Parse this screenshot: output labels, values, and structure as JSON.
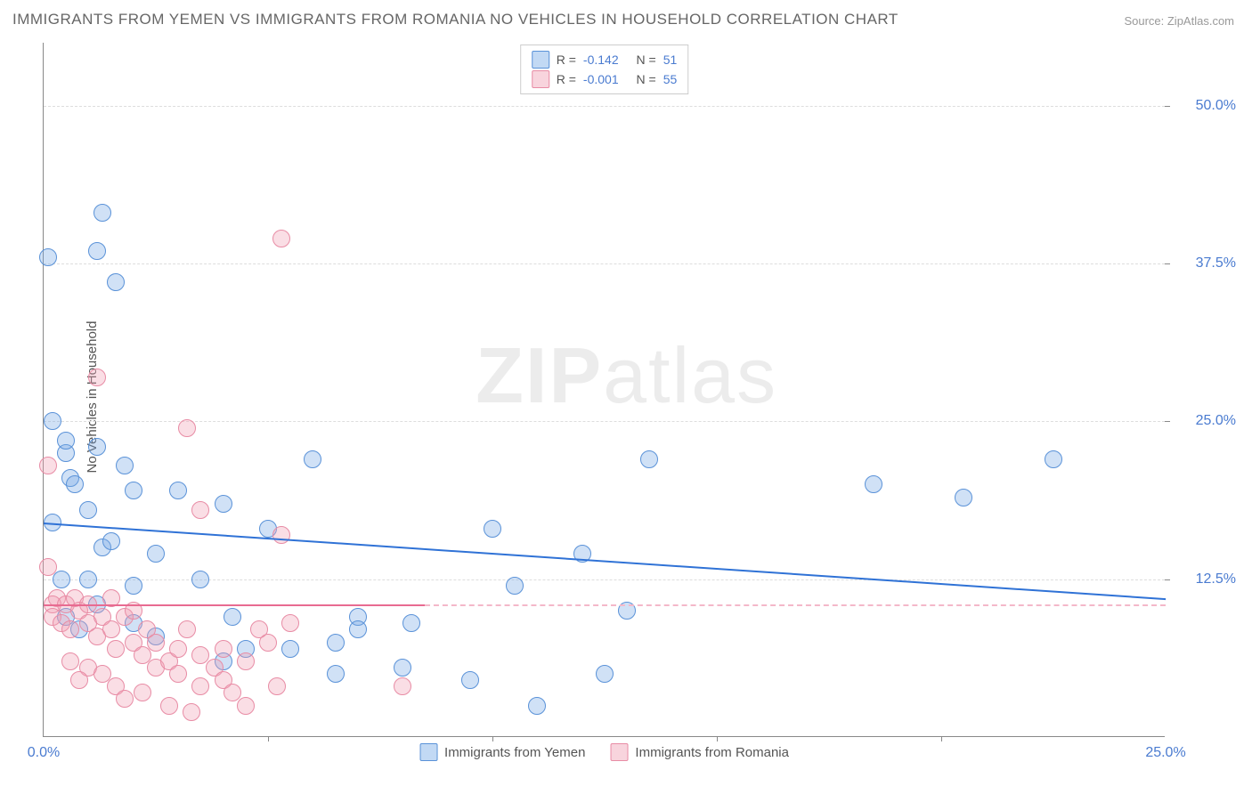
{
  "title": "IMMIGRANTS FROM YEMEN VS IMMIGRANTS FROM ROMANIA NO VEHICLES IN HOUSEHOLD CORRELATION CHART",
  "source": "Source: ZipAtlas.com",
  "ylabel": "No Vehicles in Household",
  "watermark_a": "ZIP",
  "watermark_b": "atlas",
  "chart": {
    "type": "scatter",
    "xlim": [
      0,
      25
    ],
    "ylim": [
      0,
      55
    ],
    "xtick_labels": [
      "0.0%",
      "25.0%"
    ],
    "xtick_positions": [
      0,
      25
    ],
    "xtick_minor": [
      5,
      10,
      15,
      20
    ],
    "ytick_labels": [
      "12.5%",
      "25.0%",
      "37.5%",
      "50.0%"
    ],
    "ytick_positions": [
      12.5,
      25.0,
      37.5,
      50.0
    ],
    "grid_color": "#dddddd",
    "axis_color": "#888888",
    "background": "#ffffff",
    "marker_size": 20,
    "series": [
      {
        "name": "Immigrants from Yemen",
        "fill": "rgba(120,170,230,0.35)",
        "stroke": "#5a92d8",
        "trend_color": "#2f72d6",
        "r": "-0.142",
        "n": "51",
        "trend": {
          "x1": 0,
          "y1": 17.0,
          "x2": 25,
          "y2": 11.0
        },
        "points": [
          [
            0.1,
            38.0
          ],
          [
            1.2,
            38.5
          ],
          [
            1.3,
            41.5
          ],
          [
            1.6,
            36.0
          ],
          [
            0.2,
            25.0
          ],
          [
            0.5,
            22.5
          ],
          [
            0.5,
            23.5
          ],
          [
            1.2,
            23.0
          ],
          [
            0.6,
            20.5
          ],
          [
            0.7,
            20.0
          ],
          [
            1.0,
            18.0
          ],
          [
            0.2,
            17.0
          ],
          [
            1.8,
            21.5
          ],
          [
            2.0,
            19.5
          ],
          [
            3.0,
            19.5
          ],
          [
            1.3,
            15.0
          ],
          [
            1.5,
            15.5
          ],
          [
            2.5,
            14.5
          ],
          [
            5.0,
            16.5
          ],
          [
            6.0,
            22.0
          ],
          [
            4.0,
            18.5
          ],
          [
            0.4,
            12.5
          ],
          [
            1.0,
            12.5
          ],
          [
            2.0,
            12.0
          ],
          [
            3.5,
            12.5
          ],
          [
            0.5,
            9.5
          ],
          [
            1.2,
            10.5
          ],
          [
            0.8,
            8.5
          ],
          [
            2.0,
            9.0
          ],
          [
            2.5,
            8.0
          ],
          [
            4.2,
            9.5
          ],
          [
            4.5,
            7.0
          ],
          [
            5.5,
            7.0
          ],
          [
            6.5,
            7.5
          ],
          [
            7.0,
            9.5
          ],
          [
            7.0,
            8.5
          ],
          [
            8.0,
            5.5
          ],
          [
            8.2,
            9.0
          ],
          [
            9.5,
            4.5
          ],
          [
            10.0,
            16.5
          ],
          [
            12.0,
            14.5
          ],
          [
            12.5,
            5.0
          ],
          [
            11.0,
            2.5
          ],
          [
            10.5,
            12.0
          ],
          [
            13.5,
            22.0
          ],
          [
            13.0,
            10.0
          ],
          [
            18.5,
            20.0
          ],
          [
            20.5,
            19.0
          ],
          [
            22.5,
            22.0
          ],
          [
            6.5,
            5.0
          ],
          [
            4.0,
            6.0
          ]
        ]
      },
      {
        "name": "Immigrants from Romania",
        "fill": "rgba(240,160,180,0.35)",
        "stroke": "#e88ca5",
        "trend_color": "#e86b91",
        "r": "-0.001",
        "n": "55",
        "trend_solid": {
          "x1": 0,
          "y1": 10.5,
          "x2": 8.5,
          "y2": 10.5
        },
        "trend_dash": {
          "x1": 8.5,
          "y1": 10.5,
          "x2": 25,
          "y2": 10.5
        },
        "points": [
          [
            5.3,
            39.5
          ],
          [
            1.2,
            28.5
          ],
          [
            3.2,
            24.5
          ],
          [
            0.1,
            21.5
          ],
          [
            0.1,
            13.5
          ],
          [
            3.5,
            18.0
          ],
          [
            5.3,
            16.0
          ],
          [
            0.3,
            11.0
          ],
          [
            0.2,
            10.5
          ],
          [
            0.5,
            10.5
          ],
          [
            0.7,
            11.0
          ],
          [
            0.8,
            10.0
          ],
          [
            0.2,
            9.5
          ],
          [
            0.4,
            9.0
          ],
          [
            0.6,
            8.5
          ],
          [
            1.0,
            10.5
          ],
          [
            1.0,
            9.0
          ],
          [
            1.2,
            8.0
          ],
          [
            1.3,
            9.5
          ],
          [
            1.5,
            11.0
          ],
          [
            1.5,
            8.5
          ],
          [
            1.6,
            7.0
          ],
          [
            1.8,
            9.5
          ],
          [
            2.0,
            10.0
          ],
          [
            2.0,
            7.5
          ],
          [
            2.2,
            6.5
          ],
          [
            2.3,
            8.5
          ],
          [
            2.5,
            5.5
          ],
          [
            2.5,
            7.5
          ],
          [
            2.8,
            6.0
          ],
          [
            3.0,
            7.0
          ],
          [
            3.0,
            5.0
          ],
          [
            3.2,
            8.5
          ],
          [
            3.5,
            4.0
          ],
          [
            3.5,
            6.5
          ],
          [
            3.8,
            5.5
          ],
          [
            4.0,
            4.5
          ],
          [
            4.0,
            7.0
          ],
          [
            4.2,
            3.5
          ],
          [
            4.5,
            6.0
          ],
          [
            4.8,
            8.5
          ],
          [
            5.0,
            7.5
          ],
          [
            5.2,
            4.0
          ],
          [
            5.5,
            9.0
          ],
          [
            1.0,
            5.5
          ],
          [
            1.3,
            5.0
          ],
          [
            1.6,
            4.0
          ],
          [
            1.8,
            3.0
          ],
          [
            2.2,
            3.5
          ],
          [
            2.8,
            2.5
          ],
          [
            3.3,
            2.0
          ],
          [
            4.5,
            2.5
          ],
          [
            0.6,
            6.0
          ],
          [
            0.8,
            4.5
          ],
          [
            8.0,
            4.0
          ]
        ]
      }
    ]
  },
  "legend_top": {
    "r_label": "R =",
    "n_label": "N ="
  }
}
